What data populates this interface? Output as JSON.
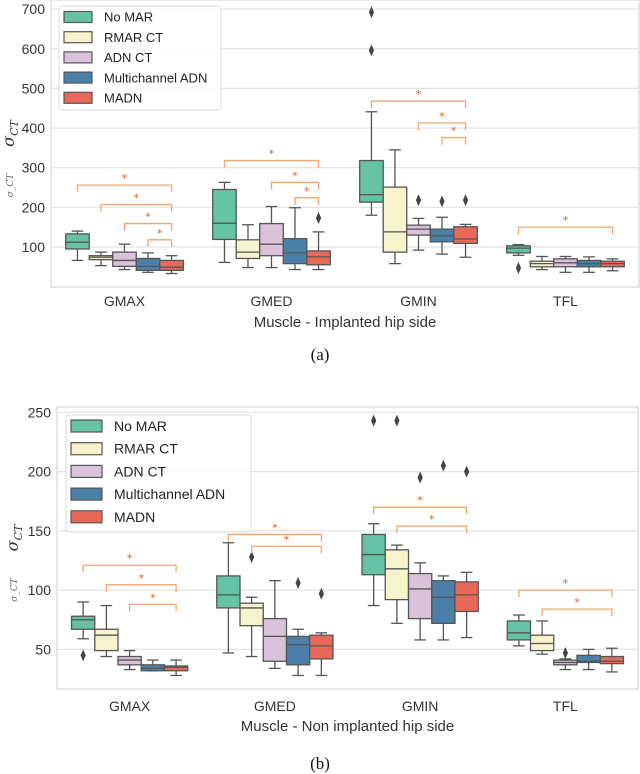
{
  "legend_series": [
    "No MAR",
    "RMAR CT",
    "ADN CT",
    "Multichannel ADN",
    "MADN"
  ],
  "colors": {
    "No MAR": "#66c2a5",
    "RMAR CT": "#f7f3cc",
    "ADN CT": "#d9c2da",
    "Multichannel ADN": "#4a7fa8",
    "MADN": "#e8695a",
    "bracket": "#f4a46e",
    "star": "#d95f1e",
    "grid": "#e3e3e3",
    "box_edge": "#555555"
  },
  "chart_data": [
    {
      "type": "box",
      "caption": "(a)",
      "xlabel": "Muscle - Implanted hip side",
      "ylabel": "σ_CT",
      "ylabel_main": "σ",
      "ylabel_sub": "CT",
      "ylim": [
        -1,
        723
      ],
      "yticks": [
        100,
        200,
        300,
        400,
        500,
        600,
        700
      ],
      "grid": true,
      "legend": "top-left",
      "categories": [
        "GMAX",
        "GMED",
        "GMIN",
        "TFL"
      ],
      "series": [
        {
          "name": "No MAR",
          "boxes": [
            {
              "lo": 66,
              "q1": 95,
              "med": 112,
              "q3": 133,
              "hi": 140,
              "out": []
            },
            {
              "lo": 61,
              "q1": 119,
              "med": 160,
              "q3": 245,
              "hi": 263,
              "out": []
            },
            {
              "lo": 180,
              "q1": 213,
              "med": 232,
              "q3": 318,
              "hi": 441,
              "out": [
                692,
                596
              ]
            },
            {
              "lo": 79,
              "q1": 85,
              "med": 97,
              "q3": 103,
              "hi": 106,
              "out": [
                47
              ]
            }
          ]
        },
        {
          "name": "RMAR CT",
          "boxes": [
            {
              "lo": 53,
              "q1": 68,
              "med": 74,
              "q3": 78,
              "hi": 87,
              "out": []
            },
            {
              "lo": 48,
              "q1": 71,
              "med": 87,
              "q3": 118,
              "hi": 156,
              "out": []
            },
            {
              "lo": 58,
              "q1": 87,
              "med": 138,
              "q3": 251,
              "hi": 345,
              "out": []
            },
            {
              "lo": 43,
              "q1": 50,
              "med": 58,
              "q3": 64,
              "hi": 76,
              "out": []
            }
          ]
        },
        {
          "name": "ADN CT",
          "boxes": [
            {
              "lo": 43,
              "q1": 51,
              "med": 66,
              "q3": 87,
              "hi": 107,
              "out": []
            },
            {
              "lo": 48,
              "q1": 78,
              "med": 107,
              "q3": 159,
              "hi": 202,
              "out": []
            },
            {
              "lo": 92,
              "q1": 130,
              "med": 145,
              "q3": 155,
              "hi": 172,
              "out": [
                218
              ]
            },
            {
              "lo": 36,
              "q1": 50,
              "med": 60,
              "q3": 70,
              "hi": 76,
              "out": []
            }
          ]
        },
        {
          "name": "Multichannel ADN",
          "boxes": [
            {
              "lo": 36,
              "q1": 41,
              "med": 51,
              "q3": 71,
              "hi": 85,
              "out": []
            },
            {
              "lo": 43,
              "q1": 58,
              "med": 85,
              "q3": 121,
              "hi": 199,
              "out": []
            },
            {
              "lo": 82,
              "q1": 113,
              "med": 128,
              "q3": 145,
              "hi": 175,
              "out": [
                215
              ]
            },
            {
              "lo": 36,
              "q1": 50,
              "med": 58,
              "q3": 66,
              "hi": 75,
              "out": []
            }
          ]
        },
        {
          "name": "MADN",
          "boxes": [
            {
              "lo": 33,
              "q1": 41,
              "med": 49,
              "q3": 66,
              "hi": 78,
              "out": []
            },
            {
              "lo": 43,
              "q1": 55,
              "med": 75,
              "q3": 90,
              "hi": 138,
              "out": [
                173
              ]
            },
            {
              "lo": 74,
              "q1": 109,
              "med": 120,
              "q3": 151,
              "hi": 157,
              "out": [
                218
              ]
            },
            {
              "lo": 40,
              "q1": 50,
              "med": 58,
              "q3": 64,
              "hi": 70,
              "out": []
            }
          ]
        }
      ],
      "significance": [
        {
          "category": 0,
          "from": 0,
          "to": 4,
          "y": 256,
          "label": "*"
        },
        {
          "category": 0,
          "from": 1,
          "to": 4,
          "y": 207,
          "label": "*"
        },
        {
          "category": 0,
          "from": 2,
          "to": 4,
          "y": 159,
          "label": "*"
        },
        {
          "category": 0,
          "from": 3,
          "to": 4,
          "y": 118,
          "label": "*"
        },
        {
          "category": 1,
          "from": 0,
          "to": 4,
          "y": 318,
          "label": "*"
        },
        {
          "category": 1,
          "from": 2,
          "to": 4,
          "y": 263,
          "label": "*"
        },
        {
          "category": 1,
          "from": 3,
          "to": 4,
          "y": 224,
          "label": "*"
        },
        {
          "category": 2,
          "from": 0,
          "to": 4,
          "y": 468,
          "label": "*"
        },
        {
          "category": 2,
          "from": 2,
          "to": 4,
          "y": 413,
          "label": "*"
        },
        {
          "category": 2,
          "from": 3,
          "to": 4,
          "y": 376,
          "label": "*"
        },
        {
          "category": 3,
          "from": 0,
          "to": 4,
          "y": 150,
          "label": "*"
        }
      ]
    },
    {
      "type": "box",
      "caption": "(b)",
      "xlabel": "Muscle - Non implanted hip side",
      "ylabel": "σ_CT",
      "ylabel_main": "σ",
      "ylabel_sub": "CT",
      "ylim": [
        16.6,
        254.5
      ],
      "yticks": [
        50,
        100,
        150,
        200,
        250
      ],
      "grid": true,
      "legend": "top-left",
      "categories": [
        "GMAX",
        "GMED",
        "GMIN",
        "TFL"
      ],
      "series": [
        {
          "name": "No MAR",
          "boxes": [
            {
              "lo": 59,
              "q1": 67,
              "med": 75,
              "q3": 78,
              "hi": 90,
              "out": [
                45
              ]
            },
            {
              "lo": 47,
              "q1": 85,
              "med": 96,
              "q3": 112,
              "hi": 140,
              "out": []
            },
            {
              "lo": 87,
              "q1": 113,
              "med": 130,
              "q3": 147,
              "hi": 156,
              "out": [
                243
              ]
            },
            {
              "lo": 53,
              "q1": 58,
              "med": 64,
              "q3": 74,
              "hi": 79,
              "out": []
            }
          ]
        },
        {
          "name": "RMAR CT",
          "boxes": [
            {
              "lo": 44,
              "q1": 49,
              "med": 62,
              "q3": 67,
              "hi": 87,
              "out": []
            },
            {
              "lo": 44,
              "q1": 70,
              "med": 85,
              "q3": 89,
              "hi": 94,
              "out": [
                128
              ]
            },
            {
              "lo": 72,
              "q1": 92,
              "med": 118,
              "q3": 134,
              "hi": 138,
              "out": [
                243
              ]
            },
            {
              "lo": 46,
              "q1": 49,
              "med": 55,
              "q3": 62,
              "hi": 74,
              "out": []
            }
          ]
        },
        {
          "name": "ADN CT",
          "boxes": [
            {
              "lo": 33,
              "q1": 37,
              "med": 41,
              "q3": 44,
              "hi": 49,
              "out": []
            },
            {
              "lo": 34,
              "q1": 40,
              "med": 61,
              "q3": 76,
              "hi": 108,
              "out": []
            },
            {
              "lo": 58,
              "q1": 76,
              "med": 101,
              "q3": 114,
              "hi": 123,
              "out": [
                195
              ]
            },
            {
              "lo": 33,
              "q1": 37,
              "med": 39,
              "q3": 41,
              "hi": 42,
              "out": [
                47
              ]
            }
          ]
        },
        {
          "name": "Multichannel ADN",
          "boxes": [
            {
              "lo": 32,
              "q1": 32,
              "med": 34,
              "q3": 37,
              "hi": 41,
              "out": []
            },
            {
              "lo": 28,
              "q1": 37,
              "med": 54,
              "q3": 61,
              "hi": 67,
              "out": [
                106
              ]
            },
            {
              "lo": 58,
              "q1": 72,
              "med": 94,
              "q3": 108,
              "hi": 112,
              "out": [
                205
              ]
            },
            {
              "lo": 33,
              "q1": 39,
              "med": 40,
              "q3": 45,
              "hi": 50,
              "out": []
            }
          ]
        },
        {
          "name": "MADN",
          "boxes": [
            {
              "lo": 28,
              "q1": 32,
              "med": 35,
              "q3": 36,
              "hi": 41,
              "out": []
            },
            {
              "lo": 28,
              "q1": 42,
              "med": 53,
              "q3": 62,
              "hi": 64,
              "out": [
                97
              ]
            },
            {
              "lo": 60,
              "q1": 82,
              "med": 96,
              "q3": 107,
              "hi": 115,
              "out": [
                200
              ]
            },
            {
              "lo": 31,
              "q1": 38,
              "med": 40,
              "q3": 44,
              "hi": 51,
              "out": []
            }
          ]
        }
      ],
      "significance": [
        {
          "category": 0,
          "from": 0,
          "to": 4,
          "y": 121,
          "label": "*"
        },
        {
          "category": 0,
          "from": 1,
          "to": 4,
          "y": 104.5,
          "label": "*"
        },
        {
          "category": 0,
          "from": 2,
          "to": 4,
          "y": 88,
          "label": "*"
        },
        {
          "category": 1,
          "from": 0,
          "to": 4,
          "y": 147,
          "label": "*"
        },
        {
          "category": 1,
          "from": 1,
          "to": 4,
          "y": 137,
          "label": "*"
        },
        {
          "category": 2,
          "from": 0,
          "to": 4,
          "y": 170,
          "label": "*"
        },
        {
          "category": 2,
          "from": 1,
          "to": 4,
          "y": 154,
          "label": "*"
        },
        {
          "category": 3,
          "from": 0,
          "to": 4,
          "y": 100,
          "label": "*"
        },
        {
          "category": 3,
          "from": 1,
          "to": 4,
          "y": 84,
          "label": "*"
        }
      ]
    }
  ]
}
